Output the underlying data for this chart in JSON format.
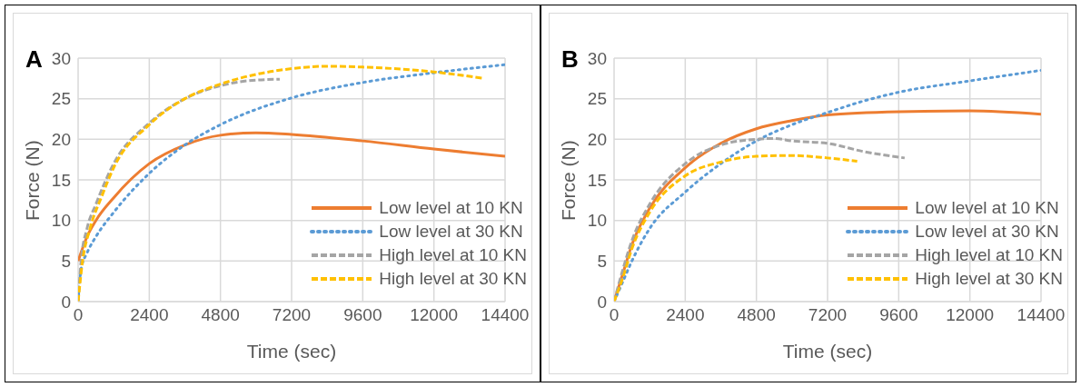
{
  "chart_data": [
    {
      "type": "line",
      "annotations": [
        "A"
      ],
      "xlabel": "Time (sec)",
      "ylabel": "Force (N)",
      "xlim": [
        0,
        14400
      ],
      "xticks": [
        0,
        2400,
        4800,
        7200,
        9600,
        12000,
        14400
      ],
      "ylim": [
        0,
        30
      ],
      "yticks": [
        0,
        5,
        10,
        15,
        20,
        25,
        30
      ],
      "grid": true,
      "legend": "bottom right",
      "marker": "none",
      "series": [
        {
          "name": "Low level at 10 KN",
          "color": "#ed7d31",
          "line_style": "solid",
          "x": [
            0,
            300,
            600,
            1200,
            2400,
            3600,
            4800,
            6000,
            7200,
            9600,
            12000,
            14400
          ],
          "values": [
            5,
            8,
            10,
            12.8,
            17,
            19.3,
            20.5,
            20.8,
            20.6,
            19.8,
            18.8,
            17.9
          ]
        },
        {
          "name": "Low level at 30 KN",
          "color": "#5b9bd5",
          "line_style": "dotted",
          "x": [
            0,
            100,
            300,
            600,
            1200,
            2400,
            3600,
            4800,
            7200,
            9600,
            12000,
            14400
          ],
          "values": [
            0,
            4,
            6,
            8,
            11,
            15.8,
            19.3,
            21.8,
            25.1,
            27,
            28.2,
            29.2
          ]
        },
        {
          "name": "High level at 10 KN",
          "color": "#a5a5a5",
          "line_style": "dashed",
          "x": [
            0,
            100,
            300,
            600,
            1200,
            2400,
            3600,
            4800,
            6000,
            6800
          ],
          "values": [
            0,
            5,
            9,
            12,
            17,
            22,
            25,
            26.6,
            27.3,
            27.4
          ]
        },
        {
          "name": "High level at 30 KN",
          "color": "#ffc000",
          "line_style": "dashed",
          "x": [
            0,
            150,
            400,
            800,
            1200,
            2400,
            3600,
            4800,
            6000,
            7200,
            8400,
            9600,
            12000,
            13700
          ],
          "values": [
            0,
            5,
            9,
            13,
            16.5,
            21.8,
            25,
            26.8,
            28,
            28.7,
            29,
            28.9,
            28.3,
            27.5
          ]
        }
      ]
    },
    {
      "type": "line",
      "annotations": [
        "B"
      ],
      "xlabel": "Time (sec)",
      "ylabel": "Force (N)",
      "xlim": [
        0,
        14400
      ],
      "xticks": [
        0,
        2400,
        4800,
        7200,
        9600,
        12000,
        14400
      ],
      "ylim": [
        0,
        30
      ],
      "yticks": [
        0,
        5,
        10,
        15,
        20,
        25,
        30
      ],
      "grid": true,
      "legend": "bottom right",
      "marker": "none",
      "series": [
        {
          "name": "Low level at 10 KN",
          "color": "#ed7d31",
          "line_style": "solid",
          "x": [
            0,
            300,
            600,
            1200,
            2400,
            3600,
            4800,
            6000,
            7200,
            9600,
            12000,
            14400
          ],
          "values": [
            0,
            3.5,
            7,
            11.5,
            16.5,
            19.5,
            21.3,
            22.3,
            23,
            23.4,
            23.5,
            23.1
          ]
        },
        {
          "name": "Low level at 30 KN",
          "color": "#5b9bd5",
          "line_style": "dotted",
          "x": [
            0,
            300,
            600,
            1200,
            2400,
            3600,
            4800,
            6000,
            7200,
            8400,
            9600,
            12000,
            14400
          ],
          "values": [
            0,
            2.5,
            5,
            9,
            13.5,
            17,
            19.8,
            21.8,
            23.3,
            24.7,
            25.8,
            27.2,
            28.5
          ]
        },
        {
          "name": "High level at 10 KN",
          "color": "#a5a5a5",
          "line_style": "dashed",
          "x": [
            0,
            300,
            600,
            1200,
            2400,
            3600,
            4800,
            5400,
            6000,
            7200,
            8400,
            9800
          ],
          "values": [
            0,
            4,
            7.5,
            12,
            17,
            19.3,
            20,
            20.1,
            19.8,
            19.5,
            18.5,
            17.7
          ]
        },
        {
          "name": "High level at 30 KN",
          "color": "#ffc000",
          "line_style": "dashed",
          "x": [
            0,
            300,
            600,
            1200,
            2400,
            3600,
            4800,
            6000,
            7200,
            8200
          ],
          "values": [
            0,
            3,
            6.5,
            11,
            15.5,
            17.2,
            17.9,
            18,
            17.7,
            17.3
          ]
        }
      ]
    }
  ]
}
